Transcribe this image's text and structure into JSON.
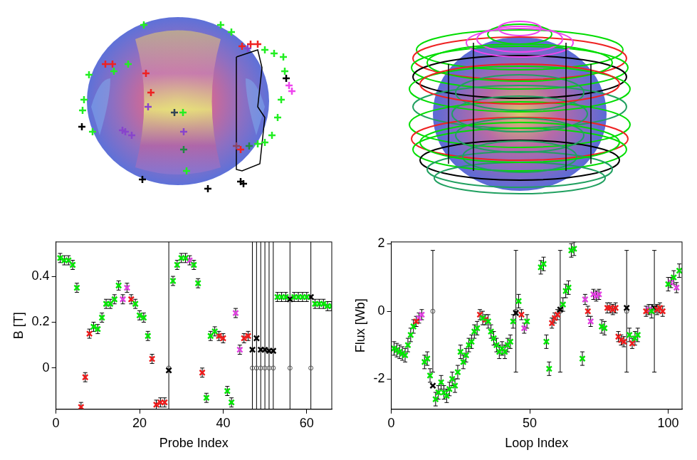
{
  "chart_data": [
    {
      "type": "scatter",
      "x_label": "Probe Index",
      "y_label": "B [T]",
      "xlim": [
        0,
        66
      ],
      "xticks": [
        0,
        20,
        40,
        60
      ],
      "ylim": [
        -0.18,
        0.55
      ],
      "yticks": [
        0,
        0.2,
        0.4
      ],
      "grid": false,
      "series": [
        {
          "color": "#00e600",
          "marker": "x",
          "x": [
            1,
            2,
            3,
            4,
            5,
            9,
            10,
            11,
            12,
            13,
            14,
            15,
            19,
            20,
            21,
            22,
            28,
            29,
            30,
            31,
            33,
            34,
            36,
            37,
            38,
            41,
            42,
            53,
            54,
            55,
            57,
            58,
            59,
            60,
            62,
            63,
            64,
            65,
            66
          ],
          "values": [
            0.48,
            0.47,
            0.47,
            0.45,
            0.35,
            0.18,
            0.17,
            0.22,
            0.28,
            0.28,
            0.3,
            0.36,
            0.28,
            0.23,
            0.22,
            0.14,
            0.38,
            0.45,
            0.48,
            0.48,
            0.45,
            0.37,
            -0.13,
            0.14,
            0.16,
            -0.1,
            -0.15,
            0.31,
            0.31,
            0.31,
            0.31,
            0.31,
            0.31,
            0.31,
            0.28,
            0.28,
            0.28,
            0.27,
            0.27
          ],
          "errors": [
            0.02,
            0.02,
            0.02,
            0.02,
            0.02,
            0.02,
            0.02,
            0.02,
            0.02,
            0.02,
            0.02,
            0.02,
            0.02,
            0.02,
            0.02,
            0.02,
            0.02,
            0.02,
            0.02,
            0.02,
            0.02,
            0.02,
            0.02,
            0.02,
            0.02,
            0.02,
            0.02,
            0.02,
            0.02,
            0.02,
            0.02,
            0.02,
            0.02,
            0.02,
            0.02,
            0.02,
            0.02,
            0.02,
            0.02
          ]
        },
        {
          "color": "#ee1c1c",
          "marker": "x",
          "x": [
            6,
            7,
            8,
            18,
            23,
            24,
            25,
            26,
            35,
            39,
            40,
            45,
            46
          ],
          "values": [
            -0.17,
            -0.04,
            0.15,
            0.3,
            0.04,
            -0.16,
            -0.15,
            -0.15,
            -0.02,
            0.14,
            0.13,
            0.13,
            0.14
          ],
          "errors": [
            0.02,
            0.02,
            0.02,
            0.02,
            0.02,
            0.02,
            0.02,
            0.02,
            0.02,
            0.02,
            0.02,
            0.02,
            0.02
          ]
        },
        {
          "color": "#e040e0",
          "marker": "x",
          "x": [
            16,
            17,
            32,
            43,
            44
          ],
          "values": [
            0.3,
            0.35,
            0.47,
            0.24,
            0.08
          ],
          "errors": [
            0.02,
            0.02,
            0.02,
            0.02,
            0.02
          ]
        },
        {
          "color": "#000000",
          "marker": "x",
          "x": [
            27,
            47,
            48,
            49,
            50,
            51,
            52,
            56,
            61
          ],
          "values": [
            -0.01,
            0.08,
            0.13,
            0.08,
            0.08,
            0.075,
            0.075,
            0.3,
            0.31
          ]
        },
        {
          "color": "#555555",
          "marker": "circle",
          "x": [
            27,
            47,
            48,
            49,
            50,
            51,
            52,
            56,
            61
          ],
          "values": [
            0,
            0,
            0,
            0,
            0,
            0,
            0,
            0,
            0
          ],
          "errors": [
            0.7,
            0.7,
            0.7,
            0.7,
            0.7,
            0.7,
            0.7,
            0.7,
            0.7
          ]
        }
      ]
    },
    {
      "type": "scatter",
      "x_label": "Loop Index",
      "y_label": "Flux [Wb]",
      "xlim": [
        0,
        105
      ],
      "xticks": [
        0,
        50,
        100
      ],
      "ylim": [
        -2.9,
        2.05
      ],
      "yticks": [
        -2,
        0,
        2
      ],
      "grid": false,
      "series": [
        {
          "color": "#00e600",
          "marker": "x",
          "x": [
            1,
            2,
            3,
            4,
            5,
            6,
            7,
            8,
            12,
            13,
            14,
            16,
            17,
            18,
            19,
            20,
            21,
            22,
            23,
            24,
            25,
            26,
            27,
            28,
            29,
            30,
            31,
            33,
            35,
            36,
            37,
            38,
            39,
            40,
            41,
            42,
            43,
            44,
            46,
            49,
            54,
            55,
            56,
            57,
            62,
            63,
            64,
            65,
            66,
            69,
            76,
            77,
            86,
            88,
            89,
            94,
            100,
            102,
            104
          ],
          "values": [
            -1.1,
            -1.15,
            -1.2,
            -1.25,
            -1.3,
            -1.0,
            -0.7,
            -0.45,
            -1.5,
            -1.4,
            -1.9,
            -2.6,
            -2.4,
            -2.1,
            -2.4,
            -2.5,
            -2.3,
            -2.0,
            -2.2,
            -1.8,
            -1.2,
            -1.5,
            -1.3,
            -1.0,
            -0.9,
            -0.6,
            -0.5,
            -0.2,
            -0.3,
            -0.6,
            -0.8,
            -1.0,
            -1.2,
            -1.1,
            -1.2,
            -1.0,
            -0.9,
            -0.3,
            0.3,
            -0.3,
            1.3,
            1.4,
            -0.9,
            -1.7,
            0.2,
            0.6,
            0.7,
            1.8,
            1.85,
            -1.4,
            -0.45,
            -0.5,
            -0.7,
            -0.8,
            -0.7,
            0.0,
            0.8,
            1.0,
            1.2
          ],
          "errors": [
            0.2,
            0.2,
            0.2,
            0.2,
            0.2,
            0.2,
            0.2,
            0.2,
            0.2,
            0.2,
            0.2,
            0.2,
            0.2,
            0.2,
            0.2,
            0.2,
            0.2,
            0.2,
            0.2,
            0.2,
            0.2,
            0.2,
            0.2,
            0.2,
            0.2,
            0.2,
            0.2,
            0.2,
            0.2,
            0.2,
            0.2,
            0.2,
            0.2,
            0.2,
            0.2,
            0.2,
            0.2,
            0.2,
            0.2,
            0.2,
            0.2,
            0.2,
            0.2,
            0.2,
            0.2,
            0.2,
            0.2,
            0.2,
            0.2,
            0.2,
            0.2,
            0.2,
            0.2,
            0.2,
            0.2,
            0.2,
            0.2,
            0.2,
            0.2
          ]
        },
        {
          "color": "#ee1c1c",
          "marker": "x",
          "x": [
            9,
            32,
            34,
            47,
            58,
            59,
            60,
            71,
            78,
            79,
            80,
            81,
            82,
            83,
            84,
            87,
            92,
            96,
            97,
            98
          ],
          "values": [
            -0.3,
            -0.1,
            -0.25,
            -0.1,
            -0.35,
            -0.2,
            -0.1,
            0.0,
            0.1,
            0.1,
            0.05,
            0.1,
            -0.75,
            -0.85,
            -0.9,
            -0.95,
            0.0,
            0.05,
            0.1,
            0.0
          ],
          "errors": [
            0.15,
            0.15,
            0.15,
            0.15,
            0.15,
            0.15,
            0.15,
            0.15,
            0.15,
            0.15,
            0.15,
            0.15,
            0.15,
            0.15,
            0.15,
            0.15,
            0.15,
            0.15,
            0.15,
            0.15
          ]
        },
        {
          "color": "#e040e0",
          "marker": "x",
          "x": [
            10,
            11,
            48,
            70,
            72,
            73,
            74,
            75,
            93,
            101,
            103
          ],
          "values": [
            -0.2,
            -0.1,
            -0.5,
            0.35,
            -0.3,
            0.5,
            0.45,
            0.5,
            0.05,
            0.85,
            0.7
          ],
          "errors": [
            0.15,
            0.15,
            0.15,
            0.15,
            0.15,
            0.15,
            0.15,
            0.15,
            0.15,
            0.15,
            0.15
          ]
        },
        {
          "color": "#000000",
          "marker": "x",
          "x": [
            15,
            45,
            61,
            85,
            95
          ],
          "values": [
            -2.2,
            -0.05,
            0.05,
            0.1,
            0.1
          ]
        },
        {
          "color": "#555555",
          "marker": "circle",
          "x": [
            15,
            45,
            61,
            85,
            95
          ],
          "values": [
            0,
            0,
            0,
            0,
            0
          ],
          "errors": [
            1.8,
            1.8,
            1.8,
            1.8,
            1.8
          ]
        }
      ]
    }
  ]
}
